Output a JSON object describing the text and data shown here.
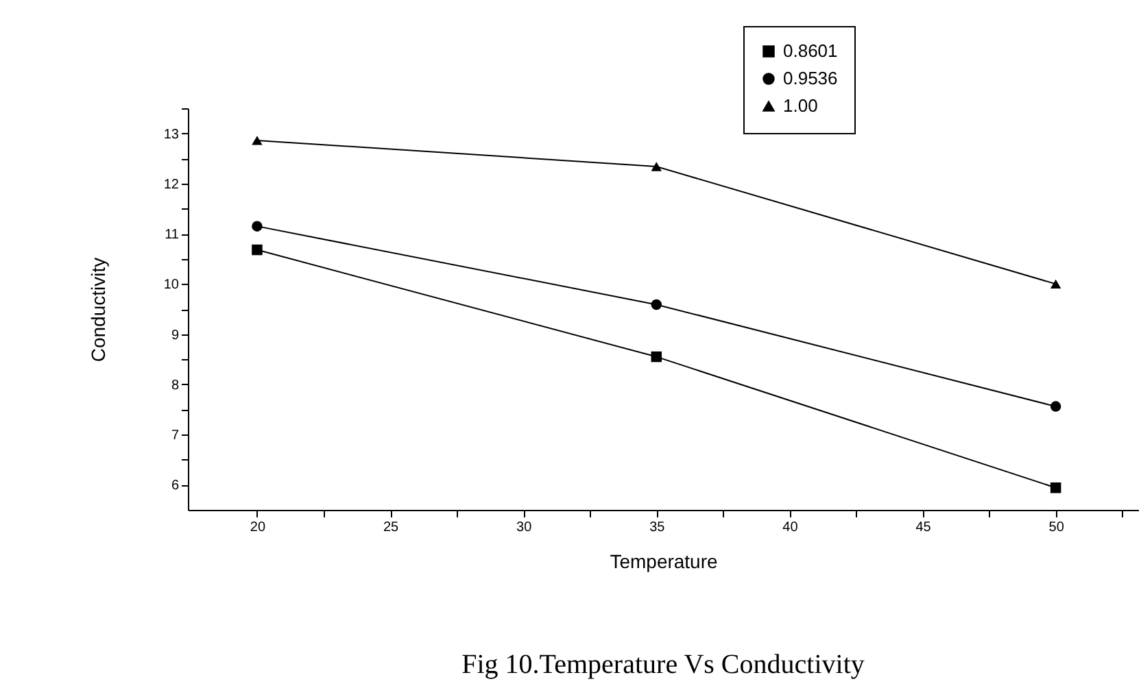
{
  "chart_data": {
    "type": "line",
    "title": "Fig 10.Temperature Vs Conductivity",
    "xlabel": "Temperature",
    "ylabel": "Conductivity",
    "x": [
      20,
      35,
      50
    ],
    "series": [
      {
        "name": "0.8601",
        "color": "#000000",
        "marker": "square",
        "values": [
          10.68,
          8.55,
          5.94
        ]
      },
      {
        "name": "0.9536",
        "color": "#000000",
        "marker": "circle",
        "values": [
          11.15,
          9.59,
          7.56
        ]
      },
      {
        "name": "1.00",
        "color": "#000000",
        "marker": "triangle",
        "values": [
          12.86,
          12.34,
          10.0
        ]
      }
    ],
    "xlim": [
      17.4,
      53.1
    ],
    "xticks": [
      20,
      {
        "value": 22.5,
        "label": null
      },
      25,
      {
        "value": 27.5,
        "label": null
      },
      30,
      {
        "value": 32.5,
        "label": null
      },
      35,
      {
        "value": 37.5,
        "label": null
      },
      40,
      {
        "value": 42.5,
        "label": null
      },
      45,
      {
        "value": 47.5,
        "label": null
      },
      50,
      {
        "value": 52.5,
        "label": null
      }
    ],
    "ylim": [
      5.5,
      13.5
    ],
    "yticks": [
      6,
      {
        "value": 6.5,
        "label": null
      },
      7,
      {
        "value": 7.5,
        "label": null
      },
      8,
      {
        "value": 8.5,
        "label": null
      },
      9,
      {
        "value": 9.5,
        "label": null
      },
      10,
      {
        "value": 10.5,
        "label": null
      },
      11,
      {
        "value": 11.5,
        "label": null
      },
      12,
      {
        "value": 12.5,
        "label": null
      },
      13,
      {
        "value": 13.5,
        "label": null
      }
    ],
    "grid": false,
    "legend": "top right",
    "line_style": "solid"
  }
}
